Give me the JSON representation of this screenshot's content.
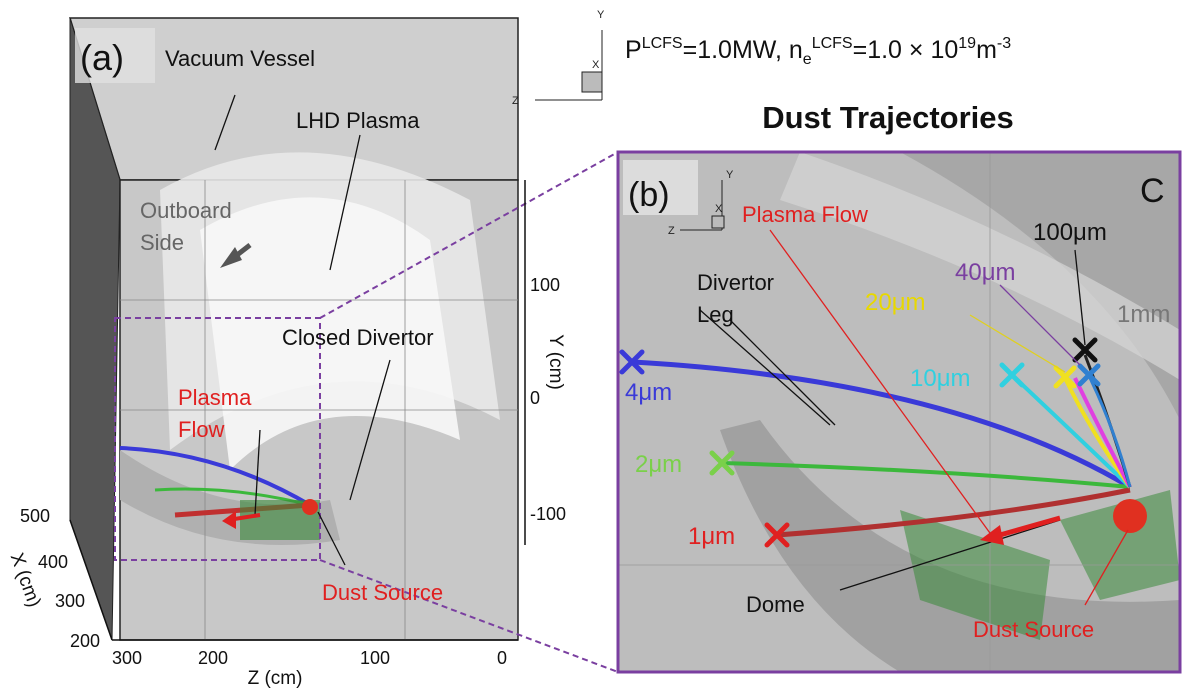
{
  "header": {
    "condition": [
      "P",
      "LCFS",
      "=1.0MW, n",
      "e",
      "LCFS",
      "=1.0 × 10",
      "19",
      "m",
      "-3"
    ],
    "title": "Dust Trajectories",
    "triad": [
      "Y",
      "X",
      "Z"
    ]
  },
  "panel_a": {
    "label": "(a)",
    "annotations": [
      "Vacuum Vessel",
      "LHD Plasma",
      "Outboard",
      "Side",
      "Closed Divertor",
      "Plasma",
      "Flow",
      "Dust Source"
    ],
    "y_axis": {
      "label": "Y (cm)",
      "ticks": [
        100,
        0,
        -100
      ]
    },
    "x_axis": {
      "label": "X (cm)",
      "ticks": [
        500,
        400,
        300,
        200
      ]
    },
    "z_axis": {
      "label": "Z (cm)",
      "ticks": [
        300,
        200,
        100,
        0
      ]
    }
  },
  "panel_b": {
    "label": "(b)",
    "corner": "C",
    "triad": [
      "Y",
      "X",
      "Z"
    ],
    "annotations": [
      "Plasma Flow",
      "Divertor",
      "Leg",
      "Dome",
      "Dust Source"
    ],
    "sizes": [
      "100μm",
      "40μm",
      "20μm",
      "1mm",
      "10μm",
      "4μm",
      "2μm",
      "1μm"
    ]
  }
}
